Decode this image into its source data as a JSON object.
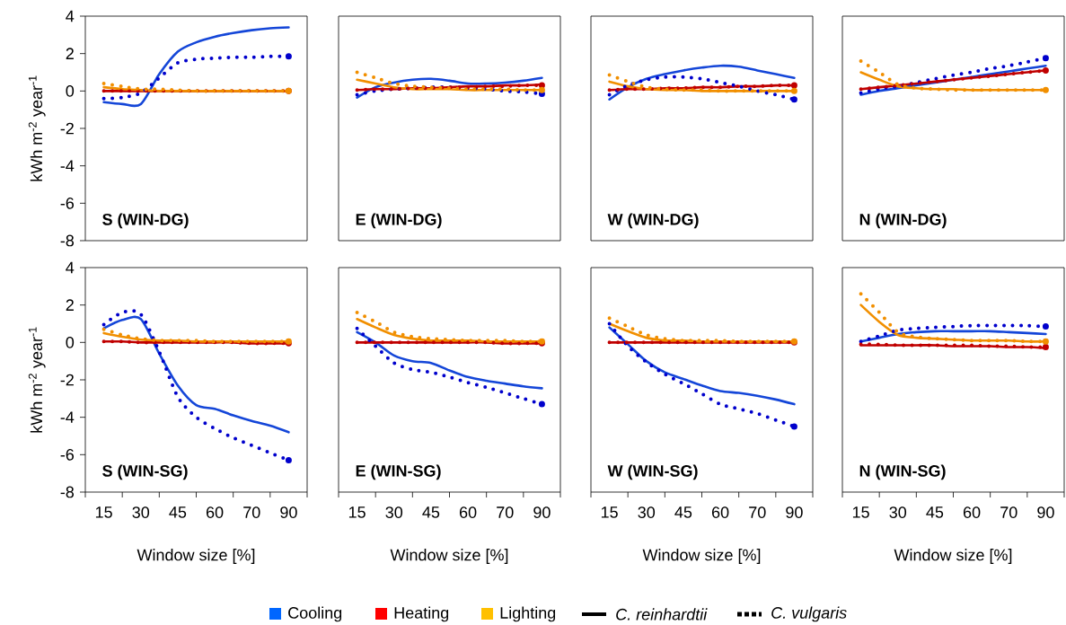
{
  "chart_data": [
    {
      "type": "line",
      "title": "S (WIN-DG)",
      "ylabel": "kWh m$^{-2}$ year$^{-1}$",
      "tick_labels": "y",
      "categories": [
        "15",
        null,
        "30",
        null,
        "45",
        null,
        "60",
        null,
        "70",
        null,
        "90"
      ],
      "ylim": [
        -8,
        4
      ],
      "yticks": [
        -8,
        -6,
        -4,
        -2,
        0,
        2,
        4
      ],
      "marker": "none",
      "series": [
        {
          "color": "#1446d8",
          "line_style": "solid",
          "values": [
            -0.6,
            -0.7,
            -0.7,
            0.9,
            2.1,
            2.6,
            2.9,
            3.1,
            3.25,
            3.35,
            3.4
          ]
        },
        {
          "color": "#c00000",
          "line_style": "solid",
          "values": [
            0.0,
            0.0,
            0.0,
            0.0,
            0.0,
            0.0,
            0.0,
            0.0,
            0.0,
            0.0,
            0.0
          ]
        },
        {
          "color": "#f18f00",
          "line_style": "solid",
          "values": [
            0.2,
            0.1,
            0.05,
            0.0,
            0.0,
            0.0,
            0.0,
            0.0,
            0.0,
            0.0,
            0.0
          ]
        },
        {
          "color": "#0000cc",
          "line_style": "dotted",
          "values": [
            -0.4,
            -0.35,
            -0.1,
            0.7,
            1.5,
            1.7,
            1.75,
            1.8,
            1.8,
            1.85,
            1.85
          ]
        },
        {
          "color": "#c00000",
          "line_style": "dotted",
          "values": [
            0.0,
            0.0,
            0.0,
            0.0,
            0.0,
            0.0,
            0.0,
            0.0,
            0.0,
            0.0,
            0.0
          ]
        },
        {
          "color": "#f18f00",
          "line_style": "dotted",
          "values": [
            0.4,
            0.25,
            0.1,
            0.1,
            0.05,
            0.0,
            0.0,
            0.0,
            0.0,
            0.0,
            0.0
          ]
        }
      ]
    },
    {
      "type": "line",
      "title": "E (WIN-DG)",
      "tick_labels": false,
      "categories": [
        "15",
        null,
        "30",
        null,
        "45",
        null,
        "60",
        null,
        "70",
        null,
        "90"
      ],
      "ylim": [
        -8,
        4
      ],
      "marker": "none",
      "series": [
        {
          "color": "#1446d8",
          "line_style": "solid",
          "values": [
            -0.35,
            0.2,
            0.45,
            0.6,
            0.65,
            0.55,
            0.4,
            0.4,
            0.45,
            0.55,
            0.7
          ]
        },
        {
          "color": "#c00000",
          "line_style": "solid",
          "values": [
            0.05,
            0.1,
            0.1,
            0.15,
            0.15,
            0.2,
            0.25,
            0.25,
            0.3,
            0.3,
            0.35
          ]
        },
        {
          "color": "#f18f00",
          "line_style": "solid",
          "values": [
            0.6,
            0.4,
            0.2,
            0.1,
            0.1,
            0.1,
            0.05,
            0.05,
            0.05,
            0.05,
            0.05
          ]
        },
        {
          "color": "#0000cc",
          "line_style": "dotted",
          "values": [
            -0.2,
            0.0,
            0.1,
            0.15,
            0.2,
            0.2,
            0.15,
            0.1,
            0.0,
            -0.05,
            -0.15
          ]
        },
        {
          "color": "#c00000",
          "line_style": "dotted",
          "values": [
            0.05,
            0.1,
            0.1,
            0.15,
            0.15,
            0.2,
            0.2,
            0.25,
            0.25,
            0.3,
            0.3
          ]
        },
        {
          "color": "#f18f00",
          "line_style": "dotted",
          "values": [
            1.0,
            0.7,
            0.4,
            0.25,
            0.2,
            0.15,
            0.1,
            0.1,
            0.1,
            0.05,
            0.05
          ]
        }
      ]
    },
    {
      "type": "line",
      "title": "W (WIN-DG)",
      "tick_labels": false,
      "categories": [
        "15",
        null,
        "30",
        null,
        "45",
        null,
        "60",
        null,
        "70",
        null,
        "90"
      ],
      "ylim": [
        -8,
        4
      ],
      "marker": "none",
      "series": [
        {
          "color": "#1446d8",
          "line_style": "solid",
          "values": [
            -0.45,
            0.2,
            0.65,
            0.9,
            1.1,
            1.25,
            1.35,
            1.3,
            1.1,
            0.9,
            0.7
          ]
        },
        {
          "color": "#c00000",
          "line_style": "solid",
          "values": [
            0.05,
            0.1,
            0.1,
            0.15,
            0.15,
            0.2,
            0.2,
            0.25,
            0.25,
            0.3,
            0.3
          ]
        },
        {
          "color": "#f18f00",
          "line_style": "solid",
          "values": [
            0.5,
            0.25,
            0.1,
            0.05,
            0.05,
            0.0,
            0.0,
            0.0,
            0.0,
            0.0,
            0.0
          ]
        },
        {
          "color": "#0000cc",
          "line_style": "dotted",
          "values": [
            -0.2,
            0.3,
            0.6,
            0.75,
            0.75,
            0.65,
            0.45,
            0.25,
            0.0,
            -0.2,
            -0.45
          ]
        },
        {
          "color": "#c00000",
          "line_style": "dotted",
          "values": [
            0.05,
            0.1,
            0.1,
            0.15,
            0.15,
            0.2,
            0.2,
            0.25,
            0.25,
            0.3,
            0.3
          ]
        },
        {
          "color": "#f18f00",
          "line_style": "dotted",
          "values": [
            0.85,
            0.5,
            0.2,
            0.1,
            0.05,
            0.05,
            0.0,
            0.0,
            0.0,
            0.0,
            0.0
          ]
        }
      ]
    },
    {
      "type": "line",
      "title": "N (WIN-DG)",
      "tick_labels": false,
      "categories": [
        "15",
        null,
        "30",
        null,
        "45",
        null,
        "60",
        null,
        "70",
        null,
        "90"
      ],
      "ylim": [
        -8,
        4
      ],
      "marker": "none",
      "series": [
        {
          "color": "#1446d8",
          "line_style": "solid",
          "values": [
            -0.2,
            0.0,
            0.15,
            0.3,
            0.45,
            0.6,
            0.75,
            0.9,
            1.05,
            1.2,
            1.35
          ]
        },
        {
          "color": "#c00000",
          "line_style": "solid",
          "values": [
            0.1,
            0.2,
            0.3,
            0.4,
            0.5,
            0.6,
            0.7,
            0.8,
            0.9,
            1.0,
            1.1
          ]
        },
        {
          "color": "#f18f00",
          "line_style": "solid",
          "values": [
            1.0,
            0.6,
            0.25,
            0.15,
            0.1,
            0.1,
            0.05,
            0.05,
            0.05,
            0.05,
            0.05
          ]
        },
        {
          "color": "#0000cc",
          "line_style": "dotted",
          "values": [
            -0.1,
            0.1,
            0.25,
            0.45,
            0.65,
            0.85,
            1.0,
            1.2,
            1.35,
            1.55,
            1.75
          ]
        },
        {
          "color": "#c00000",
          "line_style": "dotted",
          "values": [
            0.1,
            0.2,
            0.3,
            0.4,
            0.5,
            0.6,
            0.7,
            0.8,
            0.9,
            1.0,
            1.1
          ]
        },
        {
          "color": "#f18f00",
          "line_style": "dotted",
          "values": [
            1.6,
            1.0,
            0.35,
            0.15,
            0.1,
            0.05,
            0.05,
            0.05,
            0.05,
            0.05,
            0.05
          ]
        }
      ]
    },
    {
      "type": "line",
      "title": "S (WIN-SG)",
      "xlabel": "Window size [%]",
      "ylabel": "kWh m$^{-2}$ year$^{-1}$",
      "categories": [
        "15",
        null,
        "30",
        null,
        "45",
        null,
        "60",
        null,
        "70",
        null,
        "90"
      ],
      "ylim": [
        -8,
        4
      ],
      "yticks": [
        -8,
        -6,
        -4,
        -2,
        0,
        2,
        4
      ],
      "marker": "none",
      "series": [
        {
          "color": "#1446d8",
          "line_style": "solid",
          "values": [
            0.75,
            1.2,
            1.25,
            -0.6,
            -2.3,
            -3.35,
            -3.55,
            -3.9,
            -4.2,
            -4.45,
            -4.8
          ]
        },
        {
          "color": "#c00000",
          "line_style": "solid",
          "values": [
            0.05,
            0.05,
            0.0,
            0.0,
            0.0,
            0.0,
            0.0,
            0.0,
            -0.05,
            -0.05,
            -0.05
          ]
        },
        {
          "color": "#f18f00",
          "line_style": "solid",
          "values": [
            0.5,
            0.3,
            0.15,
            0.1,
            0.1,
            0.05,
            0.05,
            0.05,
            0.05,
            0.05,
            0.05
          ]
        },
        {
          "color": "#0000cc",
          "line_style": "dotted",
          "values": [
            0.95,
            1.6,
            1.5,
            -0.5,
            -2.9,
            -4.0,
            -4.6,
            -5.1,
            -5.5,
            -5.9,
            -6.3
          ]
        },
        {
          "color": "#c00000",
          "line_style": "dotted",
          "values": [
            0.05,
            0.05,
            0.0,
            0.0,
            0.0,
            0.0,
            0.0,
            0.0,
            -0.05,
            -0.05,
            -0.05
          ]
        },
        {
          "color": "#f18f00",
          "line_style": "dotted",
          "values": [
            0.7,
            0.4,
            0.2,
            0.1,
            0.1,
            0.1,
            0.05,
            0.05,
            0.05,
            0.05,
            0.05
          ]
        }
      ]
    },
    {
      "type": "line",
      "title": "E (WIN-SG)",
      "xlabel": "Window size [%]",
      "tick_labels": "x",
      "categories": [
        "15",
        null,
        "30",
        null,
        "45",
        null,
        "60",
        null,
        "70",
        null,
        "90"
      ],
      "ylim": [
        -8,
        4
      ],
      "marker": "none",
      "series": [
        {
          "color": "#1446d8",
          "line_style": "solid",
          "values": [
            0.55,
            0.0,
            -0.7,
            -1.0,
            -1.1,
            -1.5,
            -1.85,
            -2.05,
            -2.2,
            -2.35,
            -2.45
          ]
        },
        {
          "color": "#c00000",
          "line_style": "solid",
          "values": [
            0.0,
            0.0,
            0.0,
            0.0,
            0.0,
            0.0,
            0.0,
            0.0,
            -0.05,
            -0.05,
            -0.05
          ]
        },
        {
          "color": "#f18f00",
          "line_style": "solid",
          "values": [
            1.25,
            0.8,
            0.4,
            0.2,
            0.1,
            0.1,
            0.1,
            0.05,
            0.05,
            0.05,
            0.05
          ]
        },
        {
          "color": "#0000cc",
          "line_style": "dotted",
          "values": [
            0.75,
            -0.2,
            -1.1,
            -1.45,
            -1.6,
            -1.85,
            -2.15,
            -2.4,
            -2.7,
            -3.0,
            -3.3
          ]
        },
        {
          "color": "#c00000",
          "line_style": "dotted",
          "values": [
            0.0,
            0.0,
            0.0,
            0.0,
            0.0,
            0.0,
            0.0,
            0.0,
            -0.05,
            -0.05,
            -0.05
          ]
        },
        {
          "color": "#f18f00",
          "line_style": "dotted",
          "values": [
            1.6,
            1.1,
            0.55,
            0.3,
            0.2,
            0.15,
            0.1,
            0.1,
            0.1,
            0.05,
            0.05
          ]
        }
      ]
    },
    {
      "type": "line",
      "title": "W (WIN-SG)",
      "xlabel": "Window size [%]",
      "tick_labels": "x",
      "categories": [
        "15",
        null,
        "30",
        null,
        "45",
        null,
        "60",
        null,
        "70",
        null,
        "90"
      ],
      "ylim": [
        -8,
        4
      ],
      "marker": "none",
      "series": [
        {
          "color": "#1446d8",
          "line_style": "solid",
          "values": [
            0.8,
            -0.1,
            -1.0,
            -1.6,
            -1.95,
            -2.3,
            -2.6,
            -2.7,
            -2.85,
            -3.05,
            -3.3
          ]
        },
        {
          "color": "#c00000",
          "line_style": "solid",
          "values": [
            0.0,
            0.0,
            0.0,
            0.0,
            0.0,
            0.0,
            0.0,
            0.0,
            0.0,
            0.0,
            0.0
          ]
        },
        {
          "color": "#f18f00",
          "line_style": "solid",
          "values": [
            1.0,
            0.6,
            0.25,
            0.1,
            0.1,
            0.05,
            0.05,
            0.05,
            0.05,
            0.05,
            0.05
          ]
        },
        {
          "color": "#0000cc",
          "line_style": "dotted",
          "values": [
            1.0,
            -0.2,
            -1.05,
            -1.7,
            -2.2,
            -2.75,
            -3.3,
            -3.55,
            -3.8,
            -4.15,
            -4.5
          ]
        },
        {
          "color": "#c00000",
          "line_style": "dotted",
          "values": [
            0.0,
            0.0,
            0.0,
            0.0,
            0.0,
            0.0,
            0.0,
            0.0,
            0.0,
            0.0,
            0.0
          ]
        },
        {
          "color": "#f18f00",
          "line_style": "dotted",
          "values": [
            1.3,
            0.85,
            0.4,
            0.2,
            0.1,
            0.1,
            0.1,
            0.05,
            0.05,
            0.05,
            0.05
          ]
        }
      ]
    },
    {
      "type": "line",
      "title": "N (WIN-SG)",
      "xlabel": "Window size [%]",
      "tick_labels": "x",
      "categories": [
        "15",
        null,
        "30",
        null,
        "45",
        null,
        "60",
        null,
        "70",
        null,
        "90"
      ],
      "ylim": [
        -8,
        4
      ],
      "marker": "none",
      "series": [
        {
          "color": "#1446d8",
          "line_style": "solid",
          "values": [
            0.05,
            0.25,
            0.45,
            0.55,
            0.6,
            0.6,
            0.6,
            0.6,
            0.55,
            0.5,
            0.45
          ]
        },
        {
          "color": "#c00000",
          "line_style": "solid",
          "values": [
            -0.15,
            -0.15,
            -0.15,
            -0.15,
            -0.15,
            -0.2,
            -0.2,
            -0.2,
            -0.25,
            -0.25,
            -0.3
          ]
        },
        {
          "color": "#f18f00",
          "line_style": "solid",
          "values": [
            2.0,
            1.1,
            0.4,
            0.25,
            0.2,
            0.15,
            0.1,
            0.1,
            0.1,
            0.05,
            0.05
          ]
        },
        {
          "color": "#0000cc",
          "line_style": "dotted",
          "values": [
            0.05,
            0.35,
            0.65,
            0.75,
            0.8,
            0.85,
            0.9,
            0.9,
            0.9,
            0.9,
            0.85
          ]
        },
        {
          "color": "#c00000",
          "line_style": "dotted",
          "values": [
            -0.1,
            -0.1,
            -0.15,
            -0.15,
            -0.15,
            -0.15,
            -0.15,
            -0.2,
            -0.2,
            -0.25,
            -0.25
          ]
        },
        {
          "color": "#f18f00",
          "line_style": "dotted",
          "values": [
            2.6,
            1.6,
            0.55,
            0.3,
            0.2,
            0.15,
            0.1,
            0.1,
            0.1,
            0.05,
            0.05
          ]
        }
      ]
    },
    {
      "type": "other",
      "categories": [
        "Cooling",
        "Heating",
        "Lighting"
      ],
      "colors": [
        "#0066ff",
        "#ff0000",
        "#ffc000"
      ],
      "annotations": [
        "C. reinhardtii",
        "C. vulgaris"
      ]
    }
  ]
}
